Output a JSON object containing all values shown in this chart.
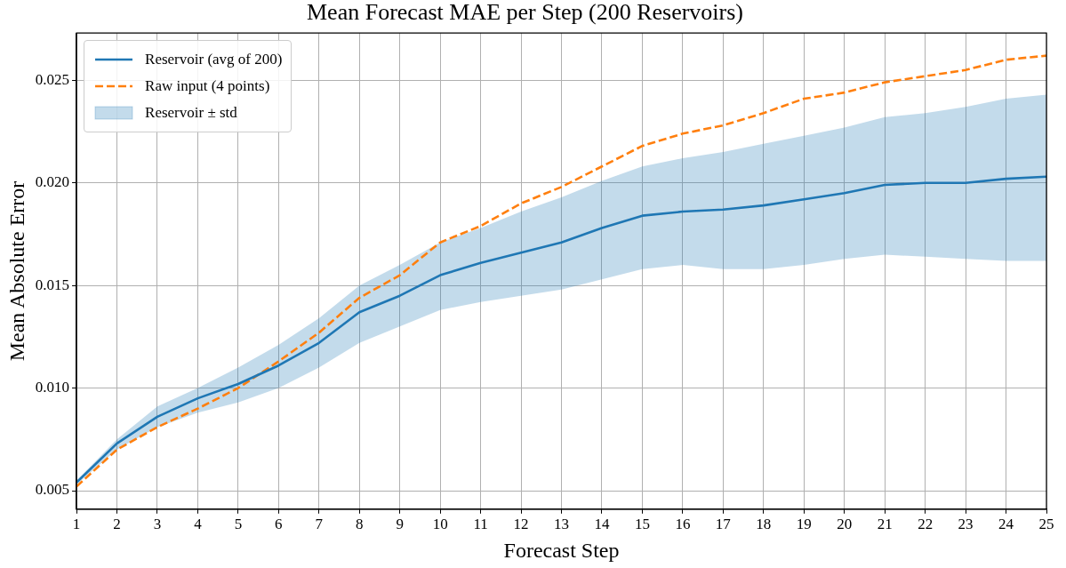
{
  "chart_data": {
    "type": "line",
    "title": "Mean Forecast MAE per Step (200 Reservoirs)",
    "xlabel": "Forecast Step",
    "ylabel": "Mean Absolute Error",
    "x": [
      1,
      2,
      3,
      4,
      5,
      6,
      7,
      8,
      9,
      10,
      11,
      12,
      13,
      14,
      15,
      16,
      17,
      18,
      19,
      20,
      21,
      22,
      23,
      24,
      25
    ],
    "series": [
      {
        "name": "Reservoir (avg of 200)",
        "color": "#1f77b4",
        "line_style": "solid",
        "values": [
          0.0054,
          0.0073,
          0.0086,
          0.0095,
          0.0102,
          0.0111,
          0.0122,
          0.0137,
          0.0145,
          0.0155,
          0.0161,
          0.0166,
          0.0171,
          0.0178,
          0.0184,
          0.0186,
          0.0187,
          0.0189,
          0.0192,
          0.0195,
          0.0199,
          0.02,
          0.02,
          0.0202,
          0.0203
        ],
        "lower": [
          0.0053,
          0.007,
          0.0081,
          0.0088,
          0.0093,
          0.01,
          0.011,
          0.0122,
          0.013,
          0.0138,
          0.0142,
          0.0145,
          0.0148,
          0.0153,
          0.0158,
          0.016,
          0.0158,
          0.0158,
          0.016,
          0.0163,
          0.0165,
          0.0164,
          0.0163,
          0.0162,
          0.0162
        ],
        "upper": [
          0.0055,
          0.0075,
          0.0091,
          0.01,
          0.011,
          0.0121,
          0.0134,
          0.015,
          0.016,
          0.0171,
          0.0178,
          0.0186,
          0.0193,
          0.0201,
          0.0208,
          0.0212,
          0.0215,
          0.0219,
          0.0223,
          0.0227,
          0.0232,
          0.0234,
          0.0237,
          0.0241,
          0.0243
        ]
      },
      {
        "name": "Raw input (4 points)",
        "color": "#ff7f0e",
        "line_style": "dashed",
        "values": [
          0.0052,
          0.007,
          0.0081,
          0.009,
          0.01,
          0.0113,
          0.0127,
          0.0144,
          0.0155,
          0.0171,
          0.0179,
          0.019,
          0.0198,
          0.0208,
          0.0218,
          0.0224,
          0.0228,
          0.0234,
          0.0241,
          0.0244,
          0.0249,
          0.0252,
          0.0255,
          0.026,
          0.0262
        ]
      }
    ],
    "annotations": [
      "Reservoir ± std"
    ],
    "xlim": [
      1,
      25
    ],
    "xticks": [
      1,
      2,
      3,
      4,
      5,
      6,
      7,
      8,
      9,
      10,
      11,
      12,
      13,
      14,
      15,
      16,
      17,
      18,
      19,
      20,
      21,
      22,
      23,
      24,
      25
    ],
    "ylim": [
      0.0041,
      0.0273
    ],
    "yticks": [
      0.005,
      {
        "value": 0.01,
        "label": "0.010"
      },
      0.015,
      {
        "value": 0.02,
        "label": "0.020"
      },
      0.025
    ],
    "grid": true,
    "legend": "top left"
  }
}
